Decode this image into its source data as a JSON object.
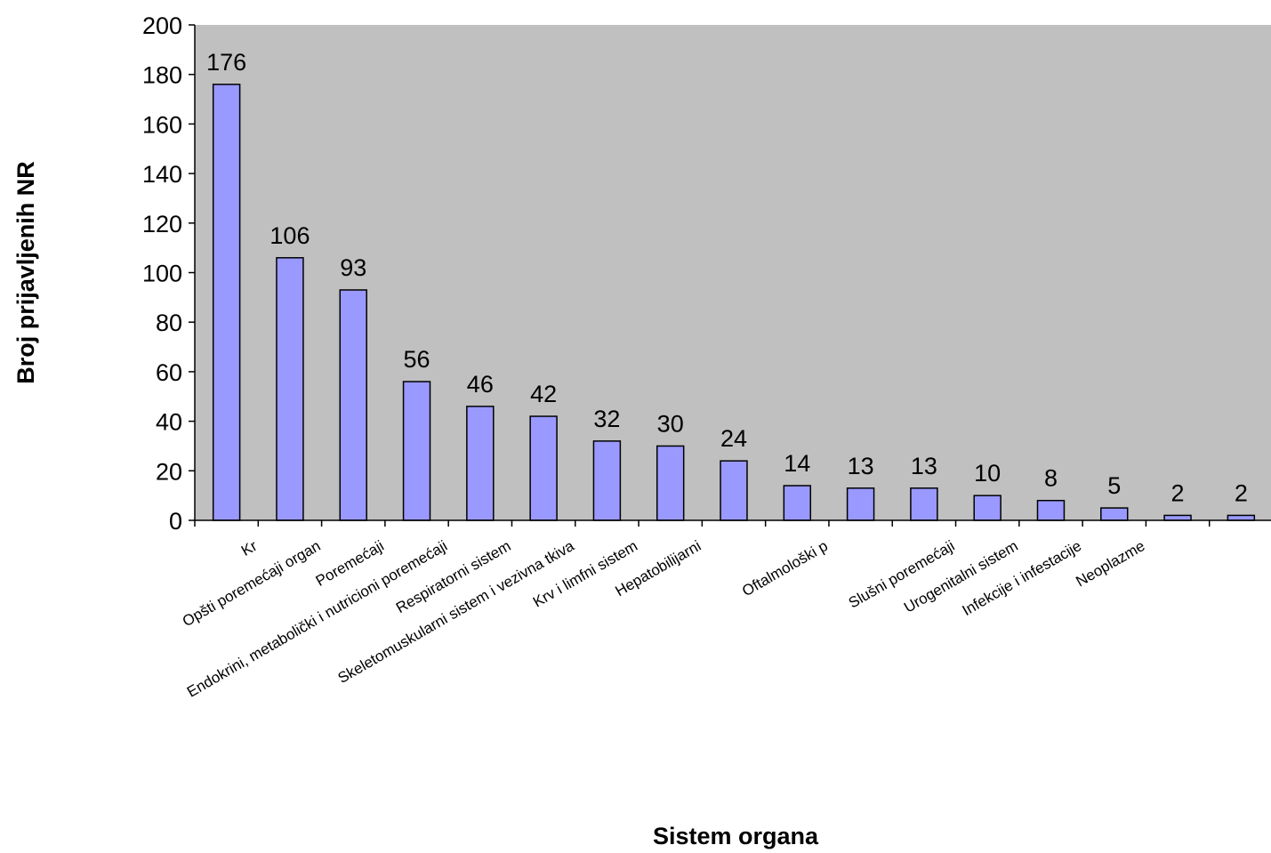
{
  "chart_data": {
    "type": "bar",
    "xlabel": "Sistem organa",
    "ylabel": "Broj prijavljenih NR",
    "ylim": [
      0,
      200
    ],
    "yticks": [
      0,
      20,
      40,
      60,
      80,
      100,
      120,
      140,
      160,
      180,
      200
    ],
    "grid": false,
    "legend": "none",
    "categories": [
      "Kr",
      "Opšti poremećaji organ",
      "Poremećaji",
      "Endokrini, metabolički i nutricioni poremećaji",
      "Respiratorni sistem",
      "Skeletomuskularni sistem i vezivna tkiva",
      "Krv i limfni sistem",
      "Hepatobilijarni",
      "",
      "Oftalmološki p",
      "",
      "Slušni poremećaji",
      "Urogenitalni sistem",
      "Infekcije i infestacije",
      "Neoplazme",
      "",
      ""
    ],
    "values": [
      176,
      106,
      93,
      56,
      46,
      42,
      32,
      30,
      24,
      14,
      13,
      13,
      10,
      8,
      5,
      2,
      2
    ],
    "colors": {
      "bar_fill": "#9999ff",
      "bar_stroke": "#000000",
      "plot_background": "#c0c0c0"
    }
  }
}
